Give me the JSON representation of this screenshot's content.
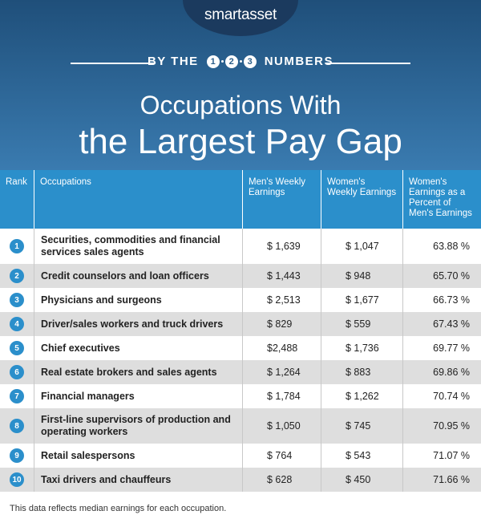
{
  "header": {
    "logo": "smartasset",
    "banner": {
      "left": "BY THE",
      "digits": [
        "1",
        "2",
        "3"
      ],
      "right": "NUMBERS"
    },
    "title": [
      "Occupations With",
      "the Largest Pay Gap"
    ]
  },
  "table": {
    "columns": [
      "Rank",
      "Occupations",
      "Men's Weekly Earnings",
      "Women's Weekly Earnings",
      "Women's Earnings as a Percent of Men's Earnings"
    ],
    "rows": [
      [
        1,
        "Securities, commodities and financial services sales agents",
        "$ 1,639",
        "$ 1,047",
        "63.88 %"
      ],
      [
        2,
        "Credit counselors and loan officers",
        "$ 1,443",
        "$ 948",
        "65.70 %"
      ],
      [
        3,
        "Physicians and surgeons",
        "$ 2,513",
        "$ 1,677",
        "66.73 %"
      ],
      [
        4,
        "Driver/sales workers and truck drivers",
        "$ 829",
        "$ 559",
        "67.43 %"
      ],
      [
        5,
        "Chief executives",
        "$2,488",
        "$ 1,736",
        "69.77 %"
      ],
      [
        6,
        "Real estate brokers and sales agents",
        "$ 1,264",
        "$ 883",
        "69.86 %"
      ],
      [
        7,
        "Financial managers",
        "$ 1,784",
        "$ 1,262",
        "70.74 %"
      ],
      [
        8,
        "First-line supervisors of production and operating workers",
        "$ 1,050",
        "$ 745",
        "70.95 %"
      ],
      [
        9,
        "Retail salespersons",
        "$ 764",
        "$ 543",
        "71.07 %"
      ],
      [
        10,
        "Taxi drivers and chauffeurs",
        "$ 628",
        "$ 450",
        "71.66 %"
      ]
    ]
  },
  "footnote": "This data reflects median earnings for each occupation."
}
